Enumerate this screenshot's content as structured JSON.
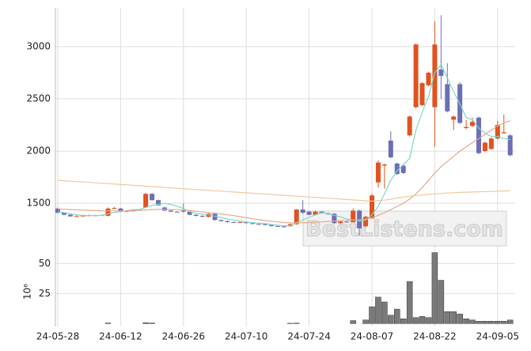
{
  "chart_data": [
    {
      "type": "candlestick",
      "open": [
        1450,
        1410,
        1390,
        1375,
        1378,
        1382,
        1385,
        1383,
        1380,
        1450,
        1450,
        1420,
        1428,
        1430,
        1460,
        1590,
        1530,
        1460,
        1430,
        1420,
        1430,
        1420,
        1390,
        1380,
        1370,
        1400,
        1340,
        1330,
        1320,
        1318,
        1320,
        1310,
        1302,
        1300,
        1292,
        1282,
        1280,
        1280,
        1300,
        1440,
        1420,
        1390,
        1420,
        1405,
        1400,
        1310,
        1325,
        1320,
        1430,
        1280,
        1355,
        1700,
        1860,
        2100,
        1880,
        1860,
        2150,
        2420,
        2440,
        2630,
        2420,
        2780,
        2640,
        2300,
        2640,
        2220,
        2240,
        2320,
        2000,
        2020,
        2120,
        2170,
        2150
      ],
      "high": [
        1460,
        1415,
        1395,
        1385,
        1388,
        1392,
        1390,
        1392,
        1460,
        1465,
        1455,
        1432,
        1436,
        1442,
        1600,
        1598,
        1535,
        1465,
        1435,
        1425,
        1500,
        1425,
        1395,
        1385,
        1405,
        1405,
        1345,
        1335,
        1325,
        1325,
        1325,
        1315,
        1306,
        1304,
        1296,
        1286,
        1284,
        1305,
        1445,
        1530,
        1425,
        1430,
        1425,
        1410,
        1405,
        1330,
        1330,
        1450,
        1440,
        1380,
        1590,
        1910,
        1880,
        2190,
        1890,
        1870,
        2340,
        3030,
        2660,
        2760,
        3240,
        3300,
        2840,
        2340,
        2660,
        2300,
        2320,
        2330,
        2090,
        2130,
        2290,
        2350,
        2160
      ],
      "low": [
        1400,
        1385,
        1370,
        1370,
        1375,
        1378,
        1378,
        1380,
        1375,
        1445,
        1415,
        1415,
        1425,
        1428,
        1455,
        1525,
        1475,
        1425,
        1415,
        1412,
        1410,
        1385,
        1375,
        1365,
        1365,
        1335,
        1325,
        1315,
        1312,
        1314,
        1305,
        1298,
        1295,
        1288,
        1278,
        1276,
        1266,
        1275,
        1295,
        1400,
        1385,
        1385,
        1400,
        1390,
        1300,
        1300,
        1312,
        1315,
        1190,
        1270,
        1350,
        1650,
        1640,
        1930,
        1770,
        1780,
        2140,
        2410,
        2430,
        2620,
        2040,
        2500,
        2370,
        2200,
        2260,
        2210,
        2230,
        1970,
        1990,
        2010,
        2110,
        2170,
        1950
      ],
      "close": [
        1410,
        1390,
        1375,
        1378,
        1382,
        1385,
        1383,
        1388,
        1450,
        1455,
        1420,
        1428,
        1430,
        1438,
        1590,
        1530,
        1480,
        1430,
        1420,
        1418,
        1420,
        1390,
        1380,
        1372,
        1400,
        1340,
        1330,
        1320,
        1318,
        1320,
        1310,
        1302,
        1300,
        1292,
        1282,
        1280,
        1272,
        1300,
        1440,
        1410,
        1390,
        1420,
        1405,
        1395,
        1310,
        1325,
        1318,
        1430,
        1260,
        1370,
        1575,
        1890,
        1870,
        1940,
        1780,
        1790,
        2330,
        3020,
        2650,
        2750,
        3020,
        2720,
        2380,
        2330,
        2270,
        2230,
        2280,
        1980,
        2080,
        2120,
        2250,
        2180,
        1960
      ],
      "up_color": "#e0531e",
      "down_color": "#6b6fb5",
      "series": [
        {
          "color": "#7fd6c8",
          "values": [
            1420,
            1410,
            1400,
            1390,
            1385,
            1383,
            1382,
            1384,
            1398,
            1412,
            1422,
            1430,
            1440,
            1440,
            1460,
            1480,
            1490,
            1500,
            1490,
            1470,
            1450,
            1420,
            1405,
            1395,
            1390,
            1377,
            1365,
            1350,
            1340,
            1330,
            1320,
            1315,
            1310,
            1305,
            1297,
            1290,
            1285,
            1285,
            1315,
            1340,
            1365,
            1390,
            1410,
            1400,
            1385,
            1370,
            1350,
            1340,
            1330,
            1340,
            1390,
            1470,
            1590,
            1720,
            1810,
            1870,
            1930,
            2200,
            2370,
            2520,
            2750,
            2830,
            2700,
            2570,
            2450,
            2320,
            2300,
            2220,
            2170,
            2140,
            2140,
            2120,
            2110
          ]
        },
        {
          "color": "#e8a88a",
          "values": [
            1445,
            1443,
            1440,
            1437,
            1435,
            1432,
            1430,
            1428,
            1427,
            1427,
            1427,
            1428,
            1430,
            1432,
            1436,
            1440,
            1441,
            1442,
            1440,
            1438,
            1435,
            1430,
            1425,
            1418,
            1412,
            1405,
            1398,
            1390,
            1382,
            1372,
            1362,
            1352,
            1343,
            1335,
            1328,
            1322,
            1317,
            1313,
            1312,
            1314,
            1316,
            1318,
            1322,
            1326,
            1330,
            1334,
            1336,
            1340,
            1342,
            1348,
            1362,
            1385,
            1410,
            1440,
            1470,
            1500,
            1540,
            1590,
            1650,
            1720,
            1790,
            1850,
            1900,
            1950,
            2000,
            2040,
            2080,
            2120,
            2160,
            2200,
            2240,
            2270,
            2290
          ]
        },
        {
          "color": "#f0c8a0",
          "values": [
            1720,
            1716,
            1712,
            1708,
            1704,
            1700,
            1696,
            1692,
            1688,
            1684,
            1680,
            1676,
            1672,
            1668,
            1664,
            1660,
            1656,
            1652,
            1648,
            1644,
            1640,
            1636,
            1632,
            1628,
            1624,
            1620,
            1616,
            1612,
            1608,
            1604,
            1600,
            1596,
            1592,
            1588,
            1584,
            1580,
            1576,
            1572,
            1568,
            1564,
            1560,
            1556,
            1552,
            1548,
            1544,
            1540,
            1536,
            1532,
            1528,
            1524,
            1520,
            1525,
            1530,
            1540,
            1550,
            1560,
            1568,
            1575,
            1580,
            1585,
            1590,
            1594,
            1598,
            1601,
            1604,
            1606,
            1608,
            1610,
            1612,
            1614,
            1616,
            1618,
            1620
          ]
        }
      ],
      "ylim": [
        1085,
        3370
      ],
      "yticks": [
        1500,
        2000,
        2500,
        3000
      ],
      "grid": true,
      "watermark": "BestListens.com"
    },
    {
      "type": "bar",
      "categories": [
        "24-05-28",
        null,
        null,
        null,
        null,
        null,
        null,
        null,
        null,
        null,
        "24-06-12",
        null,
        null,
        null,
        null,
        null,
        null,
        null,
        null,
        null,
        "24-06-26",
        null,
        null,
        null,
        null,
        null,
        null,
        null,
        null,
        null,
        "24-07-10",
        null,
        null,
        null,
        null,
        null,
        null,
        null,
        null,
        null,
        "24-07-24",
        null,
        null,
        null,
        null,
        null,
        null,
        null,
        null,
        null,
        "24-08-07",
        null,
        null,
        null,
        null,
        null,
        null,
        null,
        null,
        null,
        "24-08-22",
        null,
        null,
        null,
        null,
        null,
        null,
        null,
        null,
        null,
        "24-09-05",
        null,
        null
      ],
      "values": [
        0,
        0,
        0,
        0,
        0,
        0,
        0,
        0,
        0.5,
        0,
        0,
        0,
        0,
        0,
        0.8,
        0.5,
        0,
        0,
        0,
        0,
        0,
        0,
        0,
        0,
        0,
        0,
        0,
        0,
        0,
        0,
        0,
        0,
        0,
        0,
        0,
        0,
        0,
        0.3,
        0.4,
        0,
        0,
        0,
        0,
        0,
        0,
        0,
        0,
        2.5,
        0,
        3,
        14,
        22,
        18,
        7,
        12,
        4,
        35,
        5,
        6,
        5,
        59,
        36,
        10,
        10,
        8,
        4,
        3,
        2,
        2,
        2,
        2,
        2,
        3
      ],
      "color": "#7a7a7a",
      "y_label": "10⁶",
      "ylim": [
        -2.4,
        62
      ],
      "yticks": [
        25,
        50
      ],
      "grid": true
    }
  ]
}
